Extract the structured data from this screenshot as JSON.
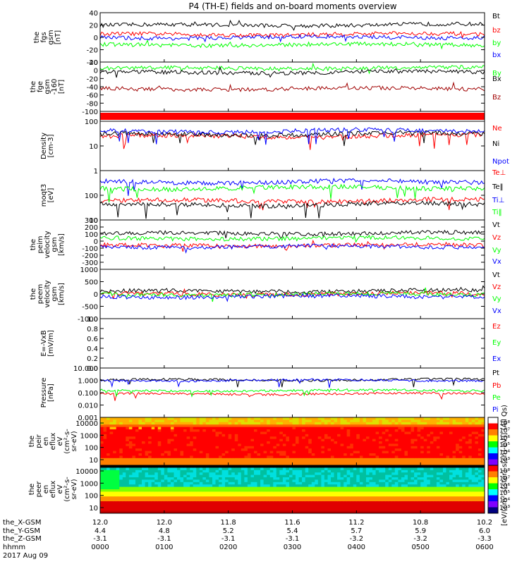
{
  "title": "P4 (TH-E) fields and on-board moments overview",
  "colors": {
    "black": "#000000",
    "red": "#ff0000",
    "green": "#00ff00",
    "blue": "#0000ff",
    "darkred": "#a00000"
  },
  "chart_data": [
    {
      "type": "line",
      "ylabel": [
        "the",
        "fgs",
        "gsm",
        "[nT]"
      ],
      "ylim": [
        -40,
        40
      ],
      "yticks": [
        "40",
        "20",
        "0",
        "-20",
        "-40"
      ],
      "series": [
        {
          "name": "Bt",
          "color": "#000000",
          "level": 20
        },
        {
          "name": "bz",
          "color": "#ff0000",
          "level": 5
        },
        {
          "name": "by",
          "color": "#00ff00",
          "level": -12
        },
        {
          "name": "bx",
          "color": "#0000ff",
          "level": 0
        }
      ]
    },
    {
      "type": "line",
      "ylabel": [
        "the",
        "fge",
        "gsm",
        "-160",
        "[nT]"
      ],
      "ylim": [
        -100,
        20
      ],
      "yticks": [
        "20",
        "0",
        "-20",
        "-40",
        "-60",
        "-80",
        "-100"
      ],
      "series": [
        {
          "name": "By",
          "color": "#00ff00",
          "level": 5
        },
        {
          "name": "Bx",
          "color": "#000000",
          "level": -5
        },
        {
          "name": "Bz",
          "color": "#a00000",
          "level": -45
        }
      ]
    },
    {
      "type": "bar",
      "ylabel": [],
      "note": "flag bar",
      "color": "#ff0000"
    },
    {
      "type": "line",
      "scale": "log",
      "ylabel": [
        "Density",
        "[cm-3]"
      ],
      "ylim": [
        1,
        100
      ],
      "yticks": [
        "100",
        "10",
        "1"
      ],
      "series": [
        {
          "name": "Ne",
          "color": "#ff0000",
          "level": 25
        },
        {
          "name": "Ni",
          "color": "#000000",
          "level": 30
        },
        {
          "name": "Npot",
          "color": "#0000ff",
          "level": 40
        }
      ]
    },
    {
      "type": "line",
      "scale": "log",
      "ylabel": [
        "moqt3",
        "[eV]"
      ],
      "ylim": [
        10,
        1000
      ],
      "yticks": [
        "100",
        "10"
      ],
      "series": [
        {
          "name": "Te⊥",
          "color": "#ff0000",
          "level": 60
        },
        {
          "name": "Te‖",
          "color": "#000000",
          "level": 42
        },
        {
          "name": "Ti⊥",
          "color": "#0000ff",
          "level": 350
        },
        {
          "name": "Ti‖",
          "color": "#00ff00",
          "level": 200
        }
      ]
    },
    {
      "type": "line",
      "ylabel": [
        "the",
        "peim",
        "velocity",
        "gsm",
        "[km/s]"
      ],
      "ylim": [
        -400,
        300
      ],
      "yticks": [
        "300",
        "200",
        "100",
        "0",
        "-100",
        "-200",
        "-300"
      ],
      "series": [
        {
          "name": "Vt",
          "color": "#000000",
          "level": 110
        },
        {
          "name": "Vz",
          "color": "#ff0000",
          "level": -60
        },
        {
          "name": "Vy",
          "color": "#00ff00",
          "level": 40
        },
        {
          "name": "Vx",
          "color": "#0000ff",
          "level": -80
        }
      ]
    },
    {
      "type": "line",
      "ylabel": [
        "the",
        "peem",
        "velocity",
        "gsm",
        "[km/s]"
      ],
      "ylim": [
        -1000,
        1000
      ],
      "yticks": [
        "1000",
        "500",
        "0",
        "-500",
        "-1000"
      ],
      "series": [
        {
          "name": "Vt",
          "color": "#000000",
          "level": 120
        },
        {
          "name": "Vz",
          "color": "#ff0000",
          "level": 0
        },
        {
          "name": "Vy",
          "color": "#00ff00",
          "level": -20
        },
        {
          "name": "Vx",
          "color": "#0000ff",
          "level": -100
        }
      ]
    },
    {
      "type": "line",
      "ylabel": [
        "E=-VxB",
        "[mV/m]"
      ],
      "ylim": [
        0,
        1
      ],
      "yticks": [
        "1.0",
        "0.8",
        "0.6",
        "0.4",
        "0.2",
        "0.0"
      ],
      "series": [
        {
          "name": "Ez",
          "color": "#ff0000"
        },
        {
          "name": "Ey",
          "color": "#00ff00"
        },
        {
          "name": "Ex",
          "color": "#0000ff"
        }
      ]
    },
    {
      "type": "line",
      "scale": "log",
      "ylabel": [
        "Pressure",
        "[nPa]"
      ],
      "ylim": [
        0.001,
        10
      ],
      "yticks": [
        "10.000",
        "1.000",
        "0.100",
        "0.010",
        "0.001"
      ],
      "series": [
        {
          "name": "Pt",
          "color": "#000000",
          "level": 1.1
        },
        {
          "name": "Pb",
          "color": "#ff0000",
          "level": 0.08
        },
        {
          "name": "Pe",
          "color": "#00ff00",
          "level": 0.15
        },
        {
          "name": "Pi",
          "color": "#0000ff",
          "level": 1.0
        }
      ]
    },
    {
      "type": "heatmap",
      "ylabel": [
        "the",
        "peir",
        "en",
        "eflux",
        "eV",
        "(cm²-s-",
        "sr-eV)"
      ],
      "yticks": [
        "10000",
        "1000",
        "100",
        "10"
      ],
      "colorbar": {
        "ticks": [
          "10⁸",
          "10⁷",
          "10⁶",
          "10⁵",
          "10⁴",
          "10³"
        ]
      }
    },
    {
      "type": "heatmap",
      "ylabel": [
        "the",
        "peer",
        "en",
        "eflux",
        "eV",
        "(cm²-s-",
        "sr-eV)"
      ],
      "yticks": [
        "10000",
        "1000",
        "100",
        "10"
      ],
      "colorbar": {
        "ticks": [
          "10⁸",
          "10⁷",
          "10⁶",
          "10⁵",
          "10⁴",
          "10³"
        ]
      }
    }
  ],
  "colorbar_label": "[eV/(cm²-s[ster]-s[ch]-eV)] (All Qs)",
  "xaxis": {
    "row_labels": [
      "the_X-GSM",
      "the_Y-GSM",
      "the_Z-GSM",
      "hhmm",
      "2017 Aug 09"
    ],
    "ticks": [
      {
        "x": "12.0",
        "y": "4.4",
        "z": "-3.1",
        "t": "0000"
      },
      {
        "x": "12.0",
        "y": "4.8",
        "z": "-3.1",
        "t": "0100"
      },
      {
        "x": "11.8",
        "y": "5.2",
        "z": "-3.1",
        "t": "0200"
      },
      {
        "x": "11.6",
        "y": "5.4",
        "z": "-3.1",
        "t": "0300"
      },
      {
        "x": "11.2",
        "y": "5.7",
        "z": "-3.2",
        "t": "0400"
      },
      {
        "x": "10.8",
        "y": "5.9",
        "z": "-3.2",
        "t": "0500"
      },
      {
        "x": "10.2",
        "y": "6.0",
        "z": "-3.3",
        "t": "0600"
      }
    ]
  }
}
